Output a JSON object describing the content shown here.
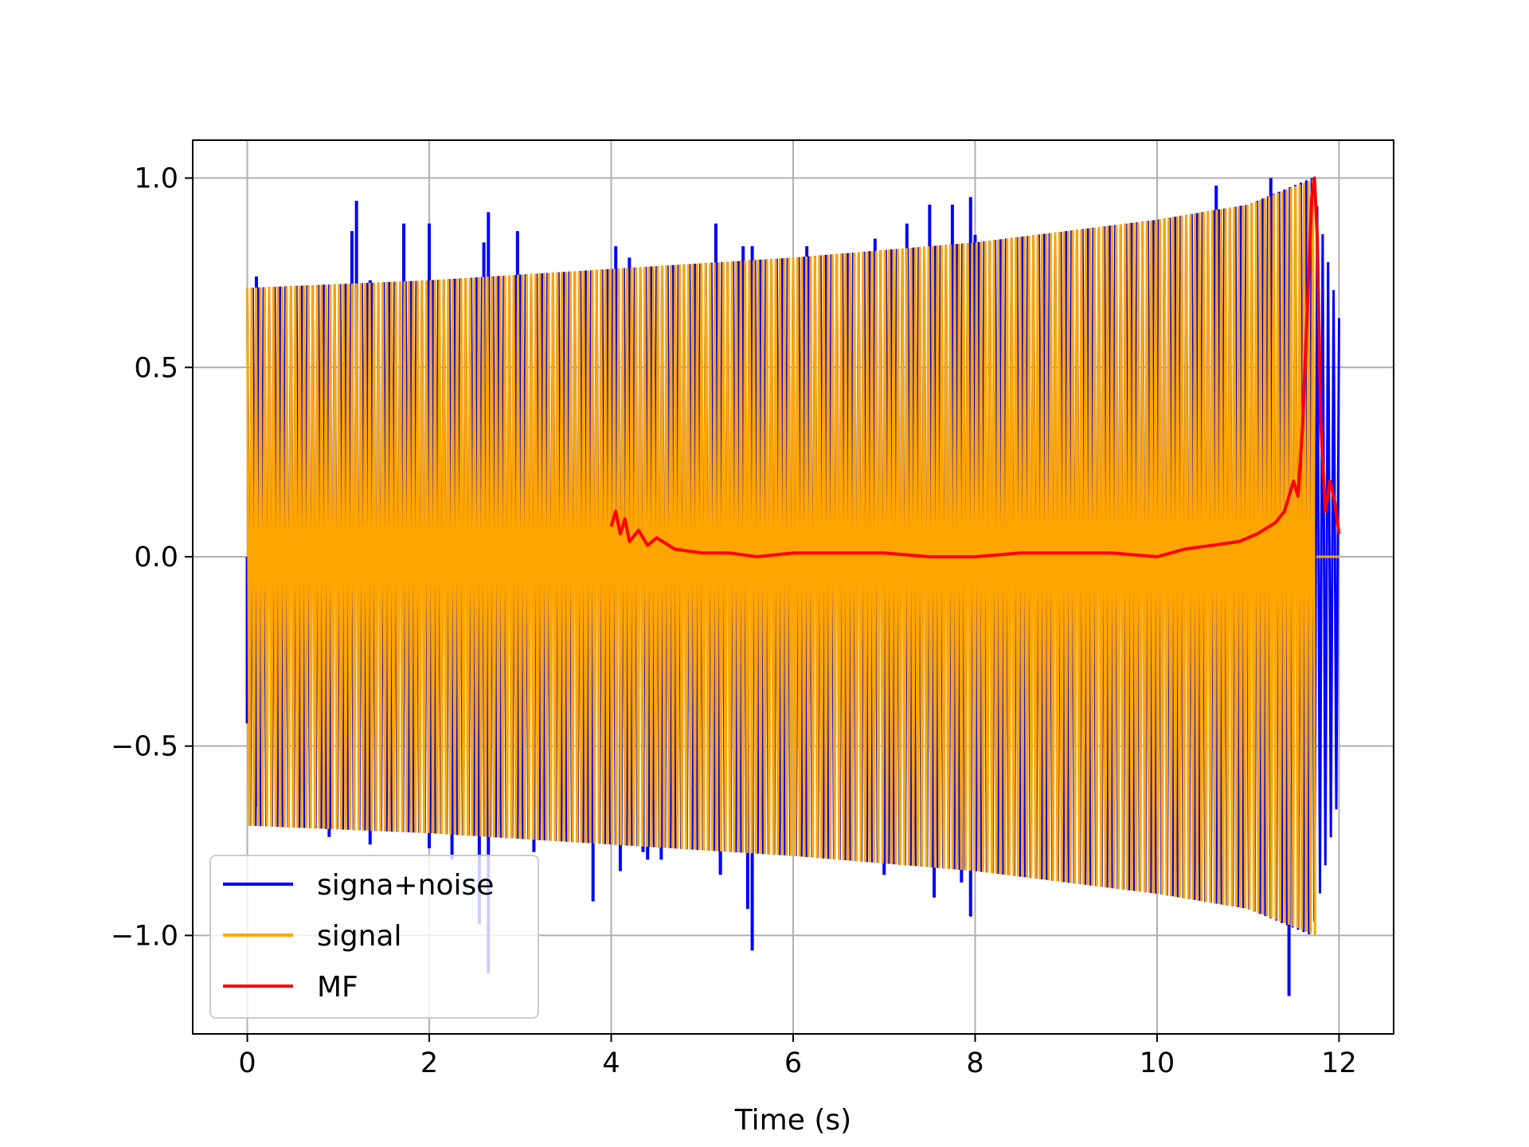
{
  "chart_data": {
    "type": "line",
    "title": "",
    "xlabel": "Time (s)",
    "ylabel": "",
    "xlim": [
      -0.6,
      12.6
    ],
    "ylim": [
      -1.26,
      1.1
    ],
    "xticks": [
      0,
      2,
      4,
      6,
      8,
      10,
      12
    ],
    "xtick_labels": [
      "0",
      "2",
      "4",
      "6",
      "8",
      "10",
      "12"
    ],
    "yticks": [
      -1.0,
      -0.5,
      0.0,
      0.5,
      1.0
    ],
    "ytick_labels": [
      "−1.0",
      "−0.5",
      "0.0",
      "0.5",
      "1.0"
    ],
    "grid": true,
    "legend_position": "lower-left",
    "series": [
      {
        "name": "signa+noise",
        "color": "#0000ff",
        "kind": "oscillation",
        "t_start": 0,
        "t_end": 12,
        "envelope_t": [
          0,
          2,
          4,
          6,
          8,
          10,
          11,
          11.7,
          12
        ],
        "envelope_upper": [
          0.71,
          0.73,
          0.76,
          0.79,
          0.83,
          0.89,
          0.93,
          1.0,
          0.63
        ],
        "envelope_lower": [
          -0.71,
          -0.73,
          -0.76,
          -0.79,
          -0.83,
          -0.89,
          -0.93,
          -1.0,
          -0.63
        ],
        "spikes": [
          {
            "t": 0.0,
            "v": -0.44
          },
          {
            "t": 0.1,
            "v": 0.74
          },
          {
            "t": 0.1,
            "v": -0.66
          },
          {
            "t": 0.9,
            "v": -0.74
          },
          {
            "t": 1.15,
            "v": 0.86
          },
          {
            "t": 1.2,
            "v": 0.94
          },
          {
            "t": 1.35,
            "v": 0.73
          },
          {
            "t": 1.35,
            "v": -0.76
          },
          {
            "t": 1.72,
            "v": 0.88
          },
          {
            "t": 2.0,
            "v": 0.88
          },
          {
            "t": 2.0,
            "v": -0.77
          },
          {
            "t": 2.25,
            "v": -0.8
          },
          {
            "t": 2.55,
            "v": -0.97
          },
          {
            "t": 2.6,
            "v": 0.83
          },
          {
            "t": 2.65,
            "v": 0.91
          },
          {
            "t": 2.65,
            "v": -1.1
          },
          {
            "t": 2.97,
            "v": 0.86
          },
          {
            "t": 3.15,
            "v": -0.78
          },
          {
            "t": 3.8,
            "v": -0.91
          },
          {
            "t": 4.05,
            "v": 0.82
          },
          {
            "t": 4.1,
            "v": -0.83
          },
          {
            "t": 4.2,
            "v": 0.79
          },
          {
            "t": 4.35,
            "v": -0.78
          },
          {
            "t": 4.4,
            "v": -0.8
          },
          {
            "t": 4.4,
            "v": -0.78
          },
          {
            "t": 4.55,
            "v": -0.8
          },
          {
            "t": 5.15,
            "v": 0.88
          },
          {
            "t": 5.2,
            "v": -0.83
          },
          {
            "t": 5.2,
            "v": -0.84
          },
          {
            "t": 5.45,
            "v": 0.82
          },
          {
            "t": 5.5,
            "v": -0.93
          },
          {
            "t": 5.55,
            "v": -1.04
          },
          {
            "t": 5.55,
            "v": 0.82
          },
          {
            "t": 6.15,
            "v": 0.82
          },
          {
            "t": 6.9,
            "v": 0.84
          },
          {
            "t": 7.0,
            "v": -0.84
          },
          {
            "t": 7.25,
            "v": 0.88
          },
          {
            "t": 7.5,
            "v": 0.93
          },
          {
            "t": 7.55,
            "v": -0.9
          },
          {
            "t": 7.75,
            "v": 0.93
          },
          {
            "t": 7.85,
            "v": -0.86
          },
          {
            "t": 7.95,
            "v": 0.95
          },
          {
            "t": 7.95,
            "v": -0.95
          },
          {
            "t": 8.0,
            "v": 0.85
          },
          {
            "t": 10.65,
            "v": 0.98
          },
          {
            "t": 11.25,
            "v": 1.0
          },
          {
            "t": 11.45,
            "v": -1.16
          }
        ]
      },
      {
        "name": "signal",
        "color": "#ffa500",
        "kind": "oscillation",
        "t_start": 0,
        "t_end": 11.75,
        "envelope_t": [
          0,
          2,
          4,
          6,
          8,
          10,
          11,
          11.75
        ],
        "envelope_upper": [
          0.71,
          0.73,
          0.76,
          0.79,
          0.83,
          0.89,
          0.93,
          1.0
        ],
        "envelope_lower": [
          -0.71,
          -0.73,
          -0.76,
          -0.79,
          -0.83,
          -0.89,
          -0.93,
          -1.0
        ],
        "tail": {
          "t_start": 11.75,
          "t_end": 12,
          "value": 0.0
        }
      },
      {
        "name": "MF",
        "color": "#ff0000",
        "kind": "line",
        "x": [
          4.0,
          4.05,
          4.1,
          4.15,
          4.2,
          4.3,
          4.4,
          4.5,
          4.7,
          5.0,
          5.3,
          5.6,
          6.0,
          6.5,
          7.0,
          7.5,
          8.0,
          8.5,
          9.0,
          9.5,
          10.0,
          10.3,
          10.6,
          10.9,
          11.1,
          11.3,
          11.4,
          11.5,
          11.55,
          11.6,
          11.65,
          11.7,
          11.73,
          11.76,
          11.8,
          11.85,
          11.9,
          11.95,
          12.0
        ],
        "y": [
          0.08,
          0.12,
          0.06,
          0.1,
          0.04,
          0.07,
          0.03,
          0.05,
          0.02,
          0.01,
          0.01,
          0.0,
          0.01,
          0.01,
          0.01,
          0.0,
          0.0,
          0.01,
          0.01,
          0.01,
          0.0,
          0.02,
          0.03,
          0.04,
          0.06,
          0.09,
          0.12,
          0.2,
          0.16,
          0.35,
          0.65,
          0.95,
          1.0,
          0.85,
          0.35,
          0.12,
          0.2,
          0.15,
          0.06
        ]
      }
    ]
  }
}
